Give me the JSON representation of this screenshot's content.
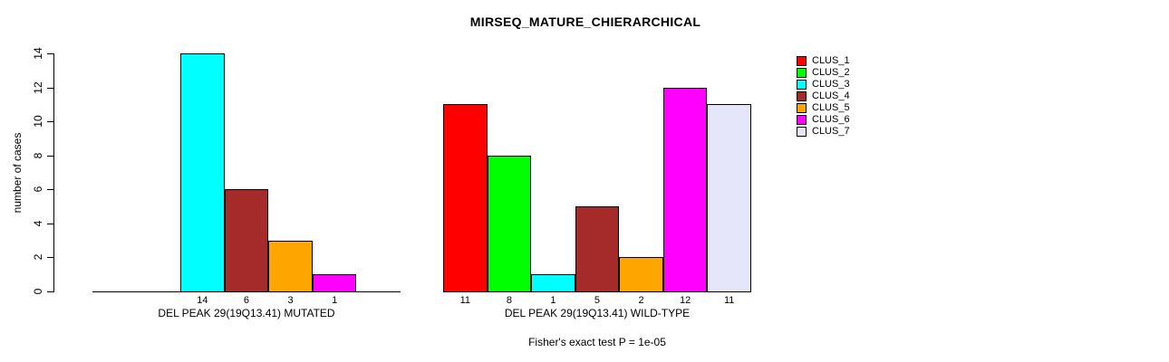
{
  "title": "MIRSEQ_MATURE_CHIERARCHICAL",
  "chart_data": {
    "type": "bar",
    "title": "MIRSEQ_MATURE_CHIERARCHICAL",
    "ylabel": "number of cases",
    "xlabel": "",
    "ylim": [
      0,
      14
    ],
    "yticks": [
      0,
      2,
      4,
      6,
      8,
      10,
      12,
      14
    ],
    "grid": false,
    "legend_position": "right",
    "categories": [
      "DEL PEAK 29(19Q13.41) MUTATED",
      "DEL PEAK 29(19Q13.41) WILD-TYPE"
    ],
    "series": [
      {
        "name": "CLUS_1",
        "color": "#FF0000",
        "values": [
          0,
          11
        ]
      },
      {
        "name": "CLUS_2",
        "color": "#00FF00",
        "values": [
          0,
          8
        ]
      },
      {
        "name": "CLUS_3",
        "color": "#00FFFF",
        "values": [
          14,
          1
        ]
      },
      {
        "name": "CLUS_4",
        "color": "#A52A2A",
        "values": [
          6,
          5
        ]
      },
      {
        "name": "CLUS_5",
        "color": "#FFA500",
        "values": [
          3,
          2
        ]
      },
      {
        "name": "CLUS_6",
        "color": "#FF00FF",
        "values": [
          1,
          12
        ]
      },
      {
        "name": "CLUS_7",
        "color": "#E6E6FA",
        "values": [
          0,
          11
        ]
      }
    ],
    "bar_value_labels": [
      [
        "14",
        "6",
        "3",
        "1"
      ],
      [
        "11",
        "8",
        "1",
        "5",
        "2",
        "12",
        "11"
      ]
    ],
    "annotation": "Fisher's exact test P = 1e-05"
  }
}
